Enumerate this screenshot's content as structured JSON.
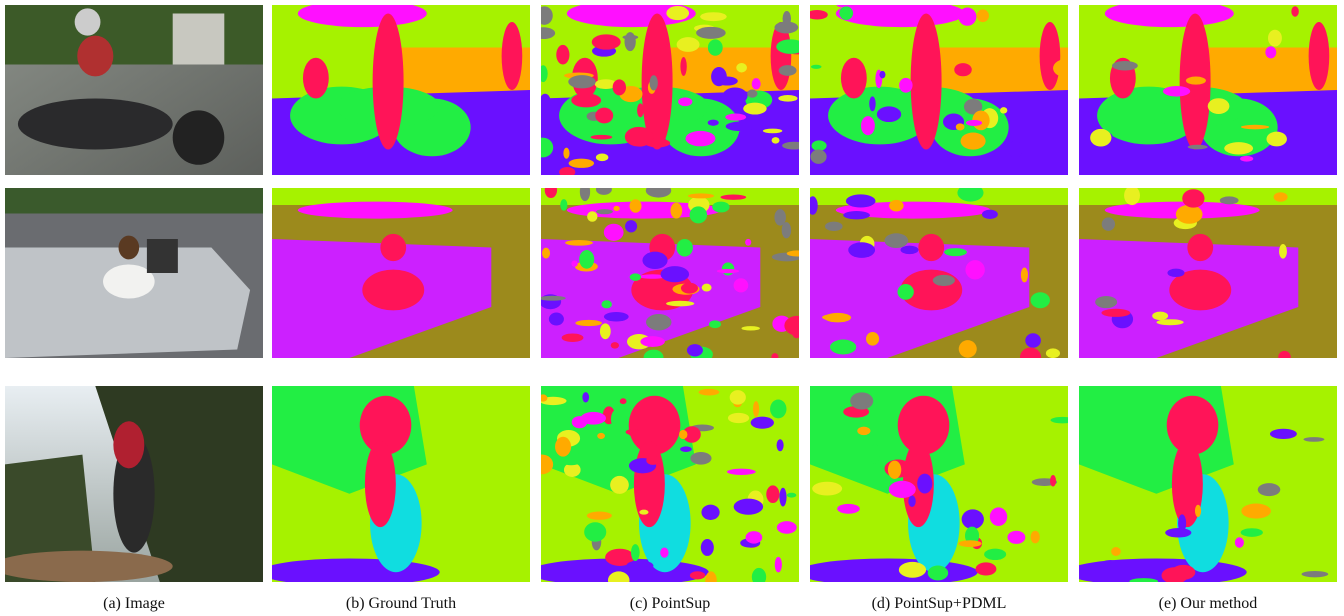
{
  "captions": [
    "(a) Image",
    "(b) Ground Truth",
    "(c) PointSup",
    "(d) PointSup+PDML",
    "(e) Our method"
  ]
}
